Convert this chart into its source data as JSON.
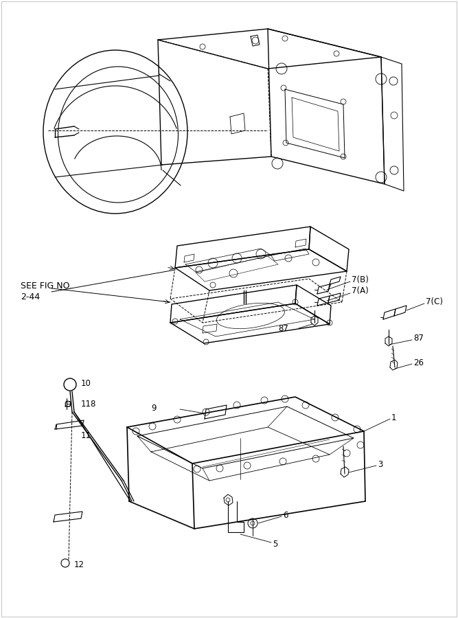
{
  "bg_color": "#ffffff",
  "line_color": "#000000",
  "fig_width": 6.67,
  "fig_height": 9.0,
  "dpi": 100
}
